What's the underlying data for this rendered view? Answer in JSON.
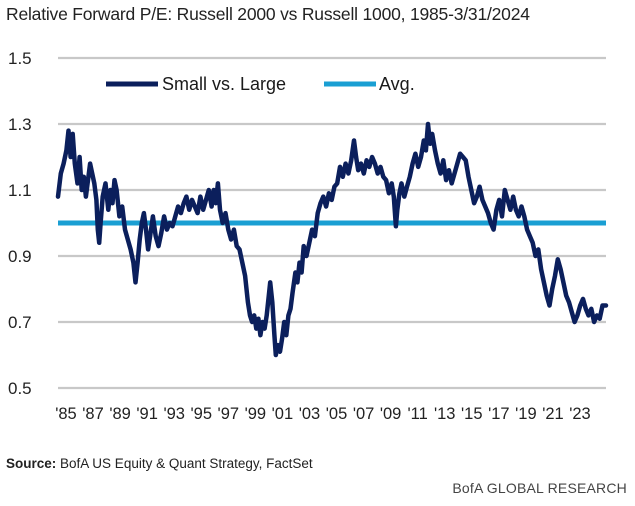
{
  "title": "Relative Forward P/E: Russell 2000 vs Russell 1000, 1985-3/31/2024",
  "source_label": "Source:",
  "source_text": "BofA US Equity & Quant Strategy, FactSet",
  "brand": "BofA GLOBAL RESEARCH",
  "colors": {
    "series": "#0b1f5c",
    "avg": "#1a9fd3",
    "grid": "#c8c8c8"
  },
  "chart_data": {
    "type": "line",
    "title": "Relative Forward P/E: Russell 2000 vs Russell 1000, 1985-3/31/2024",
    "ylim": [
      0.5,
      1.5
    ],
    "yticks": [
      "1.5",
      "1.3",
      "1.1",
      "0.9",
      "0.7",
      "0.5"
    ],
    "xticks": [
      "'85",
      "'87",
      "'89",
      "'91",
      "'93",
      "'95",
      "'97",
      "'99",
      "'01",
      "'03",
      "'05",
      "'07",
      "'09",
      "'11",
      "'13",
      "'15",
      "'17",
      "'19",
      "'21",
      "'23"
    ],
    "xlim": [
      1985.0,
      2024.25
    ],
    "grid": true,
    "legend_position": "top",
    "series": [
      {
        "name": "Small vs. Large",
        "points": [
          [
            1985.0,
            1.08
          ],
          [
            1985.2,
            1.15
          ],
          [
            1985.4,
            1.18
          ],
          [
            1985.6,
            1.22
          ],
          [
            1985.75,
            1.28
          ],
          [
            1985.9,
            1.2
          ],
          [
            1986.05,
            1.27
          ],
          [
            1986.2,
            1.18
          ],
          [
            1986.4,
            1.12
          ],
          [
            1986.55,
            1.2
          ],
          [
            1986.7,
            1.1
          ],
          [
            1986.85,
            1.14
          ],
          [
            1987.0,
            1.08
          ],
          [
            1987.15,
            1.13
          ],
          [
            1987.3,
            1.18
          ],
          [
            1987.45,
            1.15
          ],
          [
            1987.6,
            1.12
          ],
          [
            1987.75,
            1.07
          ],
          [
            1987.85,
            0.98
          ],
          [
            1987.95,
            0.94
          ],
          [
            1988.05,
            1.0
          ],
          [
            1988.2,
            1.08
          ],
          [
            1988.4,
            1.12
          ],
          [
            1988.6,
            1.04
          ],
          [
            1988.75,
            1.1
          ],
          [
            1988.9,
            1.06
          ],
          [
            1989.05,
            1.13
          ],
          [
            1989.2,
            1.1
          ],
          [
            1989.4,
            1.02
          ],
          [
            1989.6,
            1.05
          ],
          [
            1989.8,
            0.98
          ],
          [
            1990.0,
            0.95
          ],
          [
            1990.2,
            0.92
          ],
          [
            1990.4,
            0.88
          ],
          [
            1990.55,
            0.82
          ],
          [
            1990.7,
            0.88
          ],
          [
            1990.85,
            0.95
          ],
          [
            1991.0,
            1.0
          ],
          [
            1991.15,
            1.03
          ],
          [
            1991.3,
            0.98
          ],
          [
            1991.45,
            0.92
          ],
          [
            1991.6,
            0.96
          ],
          [
            1991.8,
            1.02
          ],
          [
            1992.0,
            0.96
          ],
          [
            1992.2,
            0.93
          ],
          [
            1992.4,
            0.97
          ],
          [
            1992.6,
            1.02
          ],
          [
            1992.8,
            0.98
          ],
          [
            1993.0,
            1.0
          ],
          [
            1993.2,
            0.99
          ],
          [
            1993.4,
            1.02
          ],
          [
            1993.6,
            1.05
          ],
          [
            1993.8,
            1.03
          ],
          [
            1994.0,
            1.06
          ],
          [
            1994.2,
            1.08
          ],
          [
            1994.4,
            1.04
          ],
          [
            1994.6,
            1.07
          ],
          [
            1994.8,
            1.05
          ],
          [
            1995.0,
            1.03
          ],
          [
            1995.2,
            1.08
          ],
          [
            1995.4,
            1.04
          ],
          [
            1995.6,
            1.07
          ],
          [
            1995.8,
            1.1
          ],
          [
            1996.0,
            1.05
          ],
          [
            1996.15,
            1.1
          ],
          [
            1996.3,
            1.06
          ],
          [
            1996.45,
            1.12
          ],
          [
            1996.6,
            1.04
          ],
          [
            1996.8,
            1.0
          ],
          [
            1997.0,
            1.03
          ],
          [
            1997.2,
            0.98
          ],
          [
            1997.4,
            0.95
          ],
          [
            1997.6,
            0.98
          ],
          [
            1997.8,
            0.93
          ],
          [
            1998.0,
            0.92
          ],
          [
            1998.2,
            0.88
          ],
          [
            1998.4,
            0.84
          ],
          [
            1998.6,
            0.76
          ],
          [
            1998.75,
            0.72
          ],
          [
            1998.9,
            0.7
          ],
          [
            1999.05,
            0.72
          ],
          [
            1999.2,
            0.68
          ],
          [
            1999.35,
            0.71
          ],
          [
            1999.5,
            0.66
          ],
          [
            1999.65,
            0.7
          ],
          [
            1999.8,
            0.68
          ],
          [
            1999.95,
            0.72
          ],
          [
            2000.1,
            0.78
          ],
          [
            2000.2,
            0.82
          ],
          [
            2000.35,
            0.76
          ],
          [
            2000.5,
            0.66
          ],
          [
            2000.6,
            0.6
          ],
          [
            2000.75,
            0.63
          ],
          [
            2000.9,
            0.61
          ],
          [
            2001.05,
            0.65
          ],
          [
            2001.2,
            0.7
          ],
          [
            2001.35,
            0.66
          ],
          [
            2001.5,
            0.72
          ],
          [
            2001.65,
            0.74
          ],
          [
            2001.8,
            0.79
          ],
          [
            2002.0,
            0.85
          ],
          [
            2002.15,
            0.82
          ],
          [
            2002.3,
            0.88
          ],
          [
            2002.45,
            0.85
          ],
          [
            2002.6,
            0.93
          ],
          [
            2002.8,
            0.9
          ],
          [
            2003.0,
            0.94
          ],
          [
            2003.2,
            0.98
          ],
          [
            2003.4,
            0.96
          ],
          [
            2003.6,
            1.03
          ],
          [
            2003.8,
            1.06
          ],
          [
            2004.0,
            1.08
          ],
          [
            2004.2,
            1.05
          ],
          [
            2004.4,
            1.09
          ],
          [
            2004.6,
            1.07
          ],
          [
            2004.8,
            1.11
          ],
          [
            2005.0,
            1.12
          ],
          [
            2005.2,
            1.17
          ],
          [
            2005.4,
            1.14
          ],
          [
            2005.6,
            1.18
          ],
          [
            2005.8,
            1.15
          ],
          [
            2006.0,
            1.19
          ],
          [
            2006.2,
            1.25
          ],
          [
            2006.35,
            1.2
          ],
          [
            2006.5,
            1.16
          ],
          [
            2006.7,
            1.18
          ],
          [
            2006.9,
            1.15
          ],
          [
            2007.1,
            1.19
          ],
          [
            2007.3,
            1.17
          ],
          [
            2007.5,
            1.2
          ],
          [
            2007.7,
            1.18
          ],
          [
            2007.9,
            1.15
          ],
          [
            2008.1,
            1.17
          ],
          [
            2008.3,
            1.14
          ],
          [
            2008.5,
            1.13
          ],
          [
            2008.7,
            1.09
          ],
          [
            2008.9,
            1.12
          ],
          [
            2009.05,
            1.08
          ],
          [
            2009.2,
            0.99
          ],
          [
            2009.3,
            1.04
          ],
          [
            2009.45,
            1.09
          ],
          [
            2009.6,
            1.12
          ],
          [
            2009.8,
            1.08
          ],
          [
            2010.0,
            1.11
          ],
          [
            2010.2,
            1.14
          ],
          [
            2010.4,
            1.18
          ],
          [
            2010.6,
            1.21
          ],
          [
            2010.8,
            1.17
          ],
          [
            2011.0,
            1.2
          ],
          [
            2011.2,
            1.25
          ],
          [
            2011.35,
            1.22
          ],
          [
            2011.5,
            1.3
          ],
          [
            2011.65,
            1.24
          ],
          [
            2011.8,
            1.27
          ],
          [
            2012.0,
            1.22
          ],
          [
            2012.2,
            1.18
          ],
          [
            2012.4,
            1.15
          ],
          [
            2012.6,
            1.19
          ],
          [
            2012.8,
            1.13
          ],
          [
            2013.0,
            1.16
          ],
          [
            2013.2,
            1.12
          ],
          [
            2013.4,
            1.15
          ],
          [
            2013.6,
            1.18
          ],
          [
            2013.8,
            1.21
          ],
          [
            2014.0,
            1.2
          ],
          [
            2014.2,
            1.19
          ],
          [
            2014.4,
            1.14
          ],
          [
            2014.6,
            1.1
          ],
          [
            2014.8,
            1.06
          ],
          [
            2015.0,
            1.08
          ],
          [
            2015.2,
            1.11
          ],
          [
            2015.4,
            1.07
          ],
          [
            2015.6,
            1.05
          ],
          [
            2015.8,
            1.03
          ],
          [
            2016.0,
            1.0
          ],
          [
            2016.2,
            0.98
          ],
          [
            2016.4,
            1.04
          ],
          [
            2016.6,
            1.07
          ],
          [
            2016.8,
            1.02
          ],
          [
            2017.0,
            1.1
          ],
          [
            2017.2,
            1.07
          ],
          [
            2017.4,
            1.04
          ],
          [
            2017.6,
            1.08
          ],
          [
            2017.8,
            1.04
          ],
          [
            2018.0,
            1.02
          ],
          [
            2018.2,
            1.05
          ],
          [
            2018.4,
            1.02
          ],
          [
            2018.6,
            0.98
          ],
          [
            2018.8,
            0.96
          ],
          [
            2019.0,
            0.94
          ],
          [
            2019.2,
            0.9
          ],
          [
            2019.4,
            0.92
          ],
          [
            2019.6,
            0.86
          ],
          [
            2019.8,
            0.82
          ],
          [
            2020.0,
            0.78
          ],
          [
            2020.2,
            0.75
          ],
          [
            2020.4,
            0.8
          ],
          [
            2020.6,
            0.84
          ],
          [
            2020.8,
            0.89
          ],
          [
            2021.0,
            0.86
          ],
          [
            2021.2,
            0.82
          ],
          [
            2021.4,
            0.78
          ],
          [
            2021.6,
            0.76
          ],
          [
            2021.8,
            0.73
          ],
          [
            2022.0,
            0.7
          ],
          [
            2022.2,
            0.72
          ],
          [
            2022.4,
            0.75
          ],
          [
            2022.6,
            0.77
          ],
          [
            2022.8,
            0.74
          ],
          [
            2023.0,
            0.72
          ],
          [
            2023.2,
            0.74
          ],
          [
            2023.4,
            0.7
          ],
          [
            2023.6,
            0.72
          ],
          [
            2023.8,
            0.71
          ],
          [
            2024.0,
            0.75
          ],
          [
            2024.25,
            0.75
          ]
        ]
      },
      {
        "name": "Avg.",
        "constant": 1.0
      }
    ]
  }
}
